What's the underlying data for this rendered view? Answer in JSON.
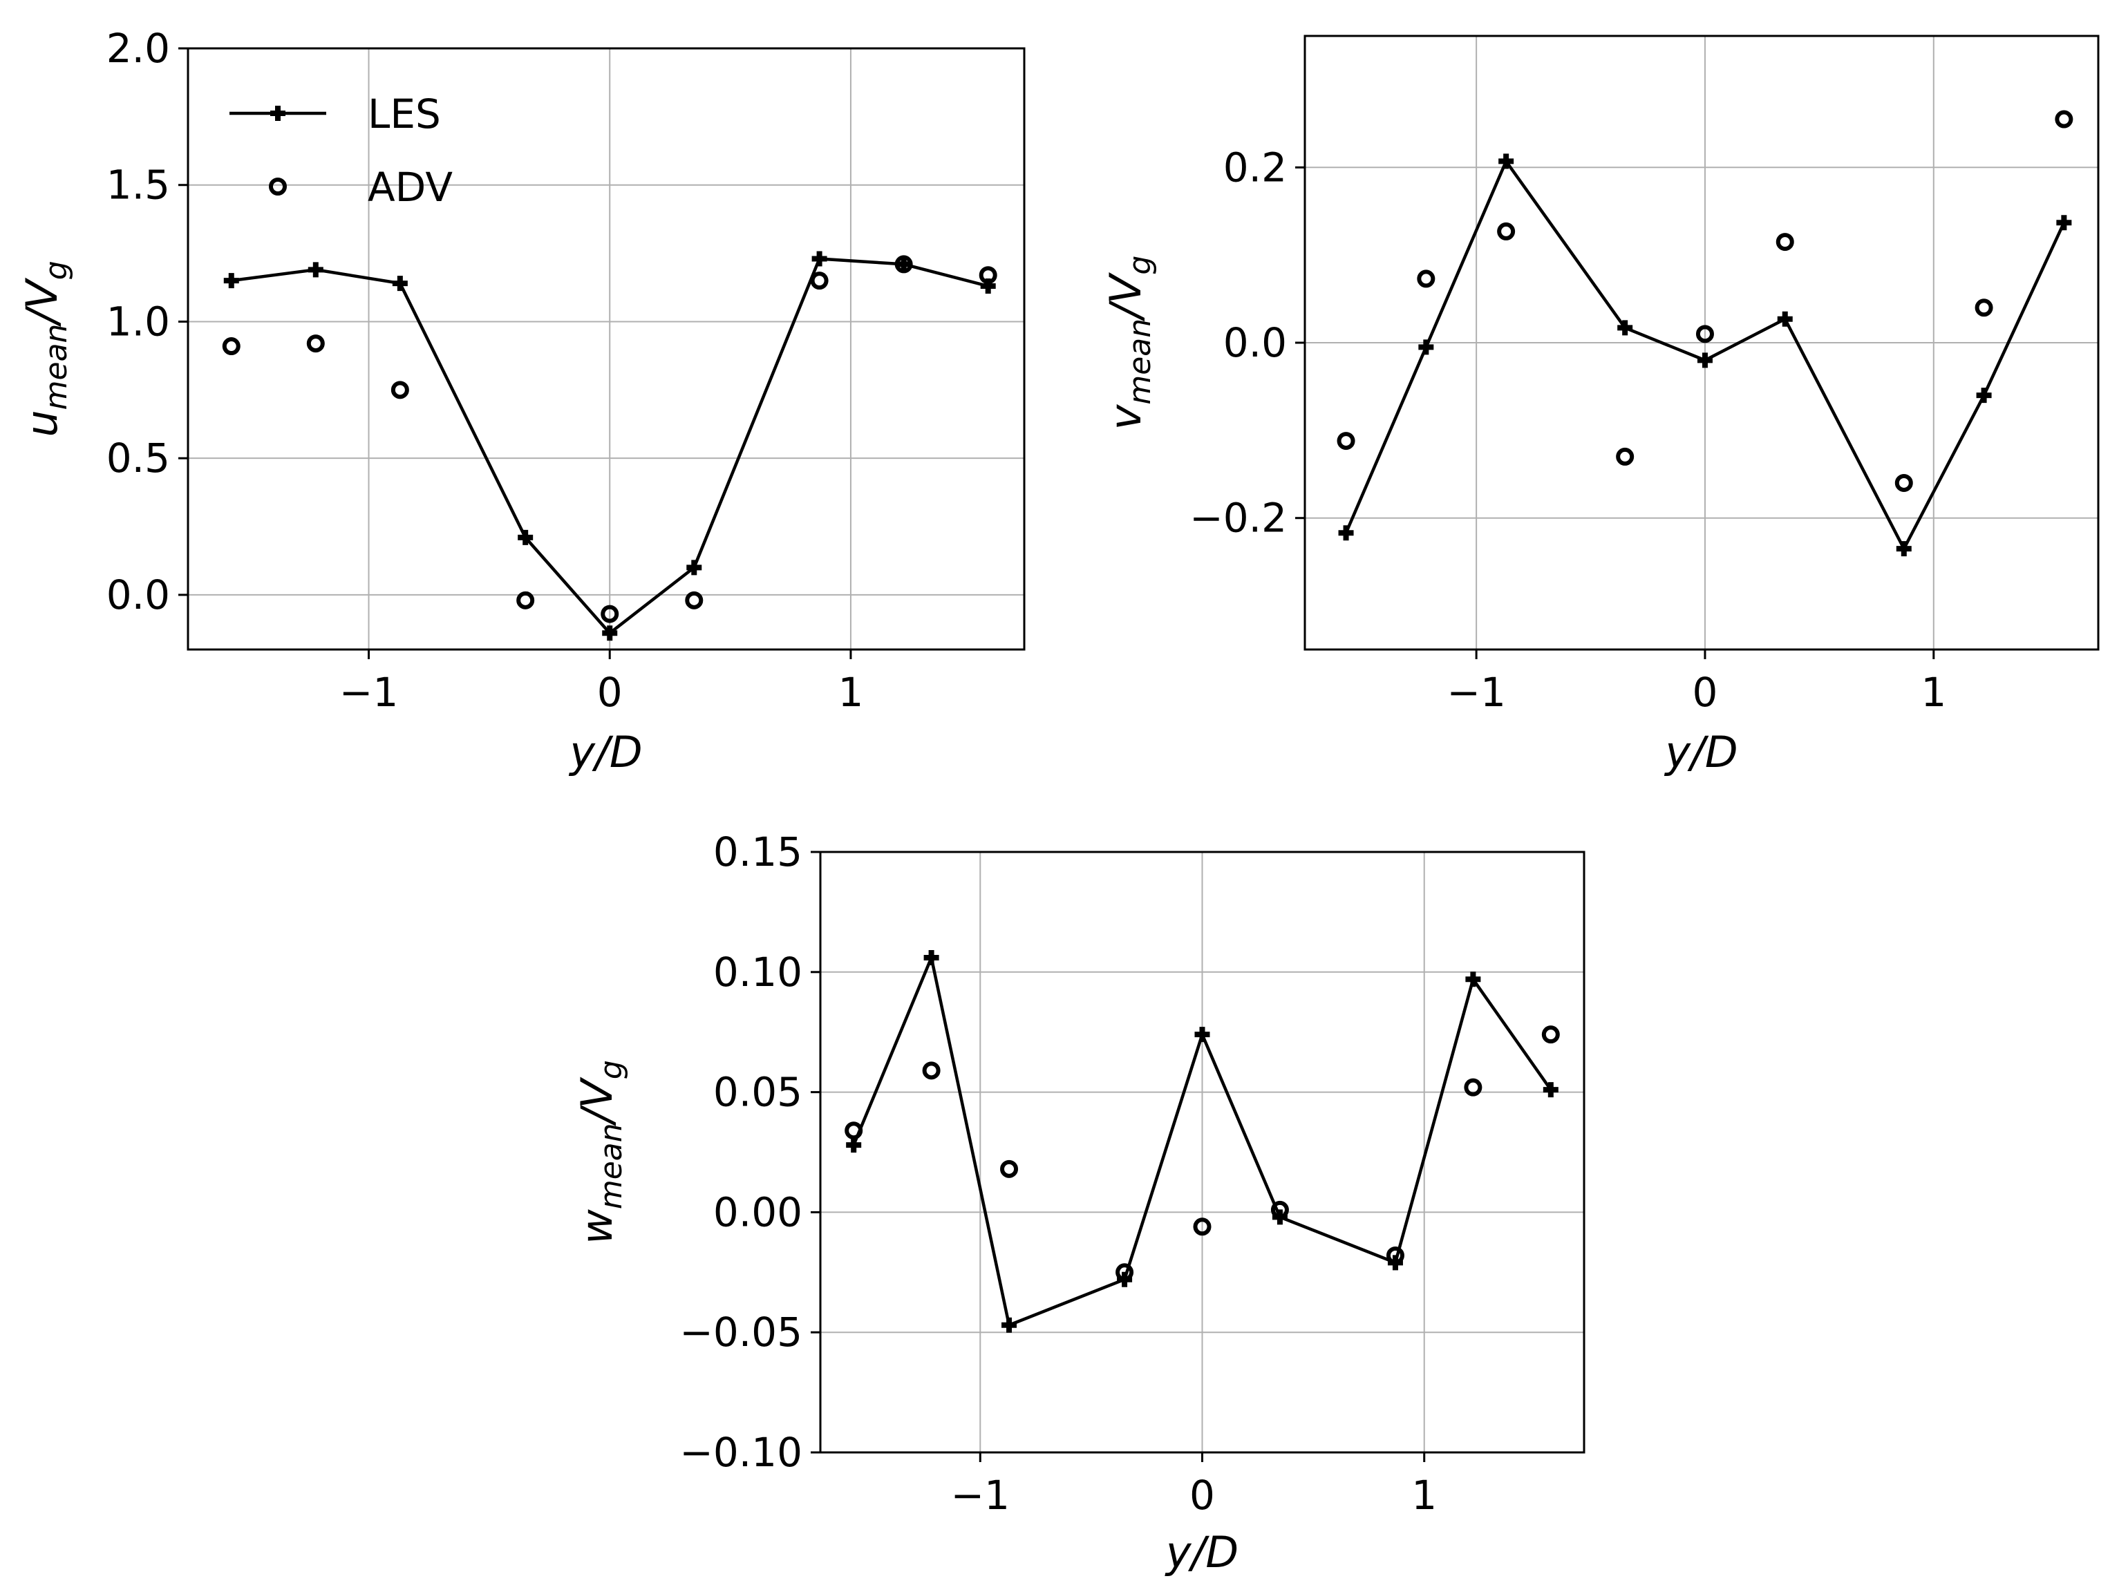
{
  "chart_data": [
    {
      "id": "u",
      "type": "line",
      "ylabel": {
        "base": "u",
        "sub": "mean",
        "den": "V",
        "den_sub": "g"
      },
      "xlabel": "y/D",
      "xlim": [
        -1.75,
        1.72
      ],
      "ylim": [
        -0.2,
        2.0
      ],
      "xticks": [
        -1,
        0,
        1
      ],
      "xtick_labels": [
        "−1",
        "0",
        "1"
      ],
      "yticks": [
        0.0,
        0.5,
        1.0,
        1.5,
        2.0
      ],
      "ytick_labels": [
        "0.0",
        "0.5",
        "1.0",
        "1.5",
        "2.0"
      ],
      "grid": true,
      "legend": {
        "position": "top-left",
        "entries": [
          "LES",
          "ADV"
        ]
      },
      "series": [
        {
          "name": "LES",
          "style": "line-plus",
          "x": [
            -1.57,
            -1.22,
            -0.87,
            -0.35,
            0.0,
            0.35,
            0.87,
            1.22,
            1.57
          ],
          "y": [
            1.15,
            1.19,
            1.14,
            0.21,
            -0.14,
            0.1,
            1.23,
            1.21,
            1.13
          ]
        },
        {
          "name": "ADV",
          "style": "open-circle",
          "x": [
            -1.57,
            -1.22,
            -0.87,
            -0.35,
            0.0,
            0.35,
            0.87,
            1.22,
            1.57
          ],
          "y": [
            0.91,
            0.92,
            0.75,
            -0.02,
            -0.07,
            -0.02,
            1.15,
            1.21,
            1.17
          ]
        }
      ]
    },
    {
      "id": "v",
      "type": "line",
      "ylabel": {
        "base": "v",
        "sub": "mean",
        "den": "V",
        "den_sub": "g"
      },
      "xlabel": "y/D",
      "xlim": [
        -1.75,
        1.72
      ],
      "ylim": [
        -0.35,
        0.35
      ],
      "xticks": [
        -1,
        0,
        1
      ],
      "xtick_labels": [
        "−1",
        "0",
        "1"
      ],
      "yticks": [
        -0.2,
        0.0,
        0.2
      ],
      "ytick_labels": [
        "−0.2",
        "0.0",
        "0.2"
      ],
      "grid": true,
      "series": [
        {
          "name": "LES",
          "style": "line-plus",
          "x": [
            -1.57,
            -1.22,
            -0.87,
            -0.35,
            0.0,
            0.35,
            0.87,
            1.22,
            1.57
          ],
          "y": [
            -0.217,
            -0.005,
            0.207,
            0.017,
            -0.02,
            0.027,
            -0.235,
            -0.06,
            0.137
          ]
        },
        {
          "name": "ADV",
          "style": "open-circle",
          "x": [
            -1.57,
            -1.22,
            -0.87,
            -0.35,
            0.0,
            0.35,
            0.87,
            1.22,
            1.57
          ],
          "y": [
            -0.112,
            0.073,
            0.127,
            -0.13,
            0.01,
            0.115,
            -0.16,
            0.04,
            0.255
          ]
        }
      ]
    },
    {
      "id": "w",
      "type": "line",
      "ylabel": {
        "base": "w",
        "sub": "mean",
        "den": "V",
        "den_sub": "g"
      },
      "xlabel": "y/D",
      "xlim": [
        -1.72,
        1.72
      ],
      "ylim": [
        -0.1,
        0.15
      ],
      "xticks": [
        -1,
        0,
        1
      ],
      "xtick_labels": [
        "−1",
        "0",
        "1"
      ],
      "yticks": [
        -0.1,
        -0.05,
        0.0,
        0.05,
        0.1,
        0.15
      ],
      "ytick_labels": [
        "−0.10",
        "−0.05",
        "0.00",
        "0.05",
        "0.10",
        "0.15"
      ],
      "grid": true,
      "series": [
        {
          "name": "LES",
          "style": "line-plus",
          "x": [
            -1.57,
            -1.22,
            -0.87,
            -0.35,
            0.0,
            0.35,
            0.87,
            1.22,
            1.57
          ],
          "y": [
            0.028,
            0.106,
            -0.047,
            -0.028,
            0.074,
            -0.002,
            -0.021,
            0.097,
            0.051
          ]
        },
        {
          "name": "ADV",
          "style": "open-circle",
          "x": [
            -1.57,
            -1.22,
            -0.87,
            -0.35,
            0.0,
            0.35,
            0.87,
            1.22,
            1.57
          ],
          "y": [
            0.034,
            0.059,
            0.018,
            -0.025,
            -0.006,
            0.001,
            -0.018,
            0.052,
            0.074
          ]
        }
      ]
    }
  ]
}
